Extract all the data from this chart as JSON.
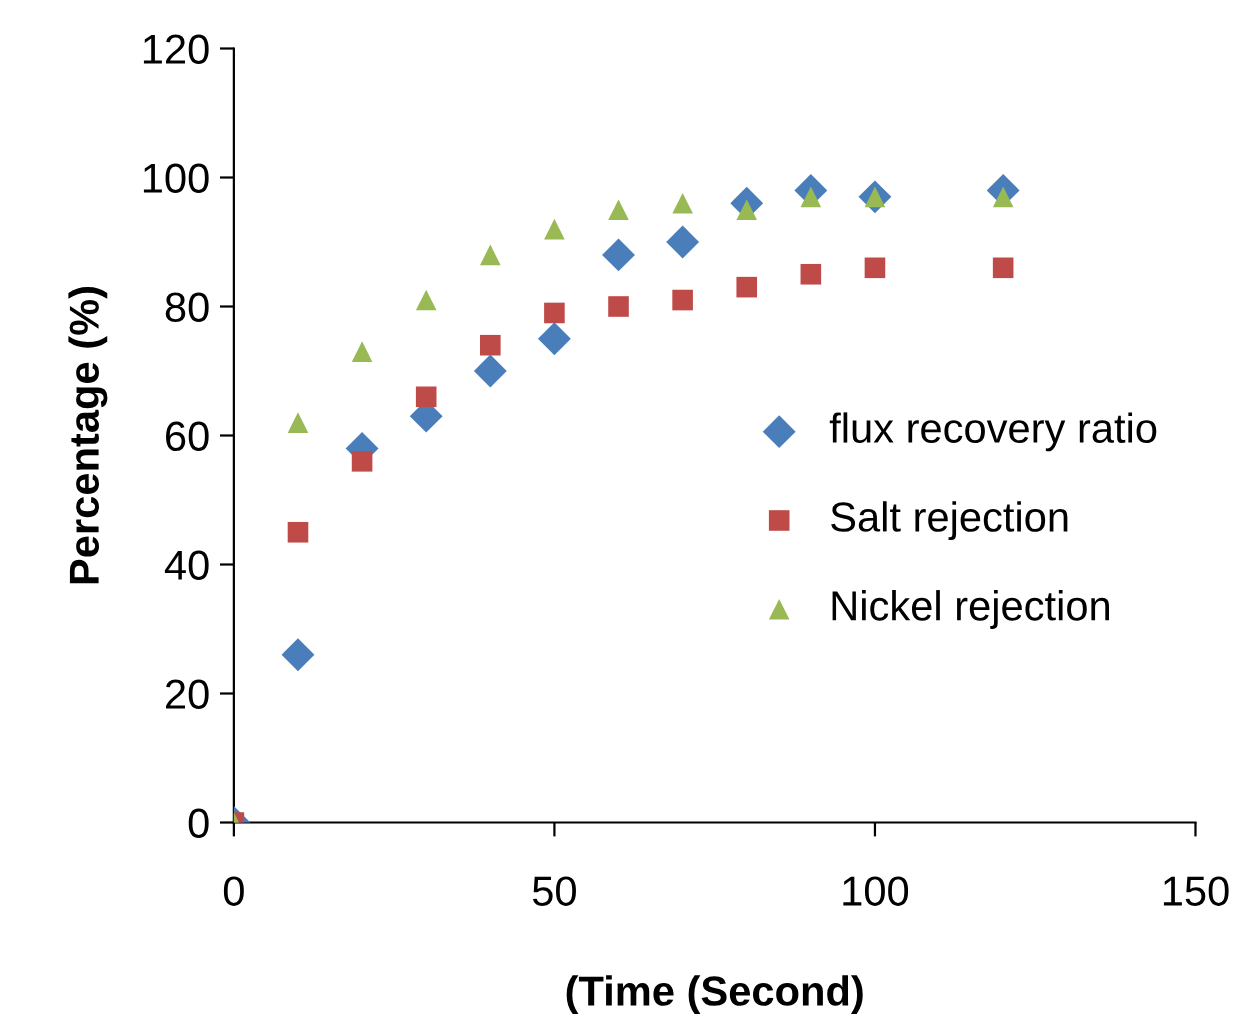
{
  "chart_data": {
    "type": "scatter",
    "xlabel": "(Time (Second)",
    "ylabel": "Percentage (%)",
    "xlim": [
      0,
      150
    ],
    "xticks": [
      0,
      50,
      100,
      150
    ],
    "ylim": [
      0,
      120
    ],
    "yticks": [
      0,
      20,
      40,
      60,
      80,
      100,
      120
    ],
    "grid": false,
    "legend": "right",
    "series": [
      {
        "name": "flux recovery ratio",
        "color": "#4a7ebb",
        "marker": "diamond",
        "x": [
          0,
          10,
          20,
          30,
          40,
          50,
          60,
          70,
          80,
          90,
          100,
          120
        ],
        "values": [
          0,
          26,
          58,
          63,
          70,
          75,
          88,
          90,
          96,
          98,
          97,
          98
        ]
      },
      {
        "name": "Salt rejection",
        "color": "#be4b48",
        "marker": "square",
        "x": [
          0,
          10,
          20,
          30,
          40,
          50,
          60,
          70,
          80,
          90,
          100,
          120
        ],
        "values": [
          0,
          45,
          56,
          66,
          74,
          79,
          80,
          81,
          83,
          85,
          86,
          86
        ]
      },
      {
        "name": "Nickel rejection",
        "color": "#98b954",
        "marker": "triangle",
        "x": [
          0,
          10,
          20,
          30,
          40,
          50,
          60,
          70,
          80,
          90,
          100,
          120
        ],
        "values": [
          0,
          62,
          73,
          81,
          88,
          92,
          95,
          96,
          95,
          97,
          97,
          97
        ]
      }
    ]
  }
}
